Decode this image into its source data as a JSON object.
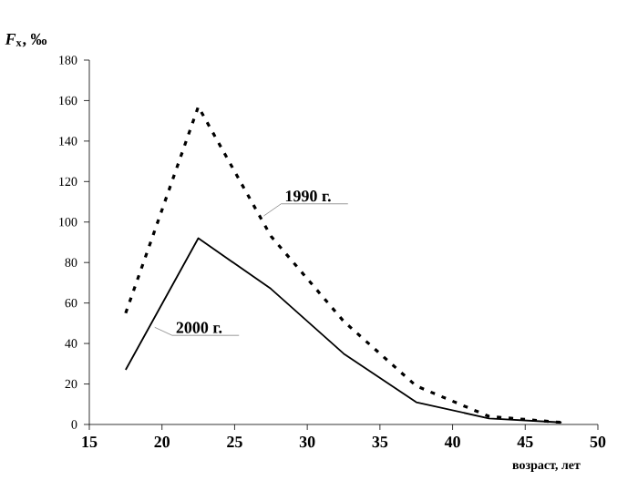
{
  "chart_data": {
    "type": "line",
    "xlabel": "возраст, лет",
    "ylabel": "*F*$_{x}$, ‰",
    "x": [
      17.5,
      22.5,
      27.5,
      32.5,
      37.5,
      42.5,
      47.5
    ],
    "series": [
      {
        "color": "#000000",
        "line_style": "dashed",
        "values": [
          55,
          157,
          93,
          51,
          19,
          4,
          1
        ]
      },
      {
        "color": "#000000",
        "line_style": "solid",
        "values": [
          27,
          92,
          67,
          35,
          11,
          3,
          1
        ]
      }
    ],
    "xlim": [
      15,
      50
    ],
    "xticks": [
      15,
      20,
      25,
      30,
      35,
      40,
      45,
      50
    ],
    "ylim": [
      0,
      180
    ],
    "yticks": [
      0,
      20,
      40,
      60,
      80,
      100,
      120,
      140,
      160,
      180
    ],
    "grid": false,
    "marker": "none",
    "annotations": [
      {
        "text": "1990 г.",
        "x": 27,
        "y": 103
      },
      {
        "text": "2000 г.",
        "x": 19.5,
        "y": 48
      }
    ]
  }
}
